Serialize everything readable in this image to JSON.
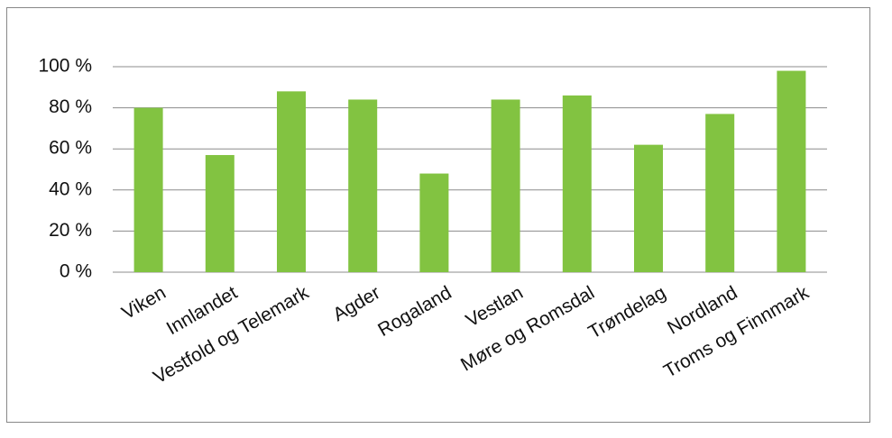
{
  "chart_data": {
    "type": "bar",
    "categories": [
      "Viken",
      "Innlandet",
      "Vestfold og Telemark",
      "Agder",
      "Rogaland",
      "Vestlan",
      "Møre og Romsdal",
      "Trøndelag",
      "Nordland",
      "Troms og Finnmark"
    ],
    "values": [
      80,
      57,
      88,
      84,
      48,
      84,
      86,
      62,
      77,
      98
    ],
    "color": "#82c341",
    "ylim": [
      0,
      100
    ],
    "yticks": [
      {
        "value": 0,
        "label": "0 %"
      },
      {
        "value": 20,
        "label": "20 %"
      },
      {
        "value": 40,
        "label": "40 %"
      },
      {
        "value": 60,
        "label": "60 %"
      },
      {
        "value": 80,
        "label": "80 %"
      },
      {
        "value": 100,
        "label": "100 %"
      }
    ],
    "grid": true
  }
}
